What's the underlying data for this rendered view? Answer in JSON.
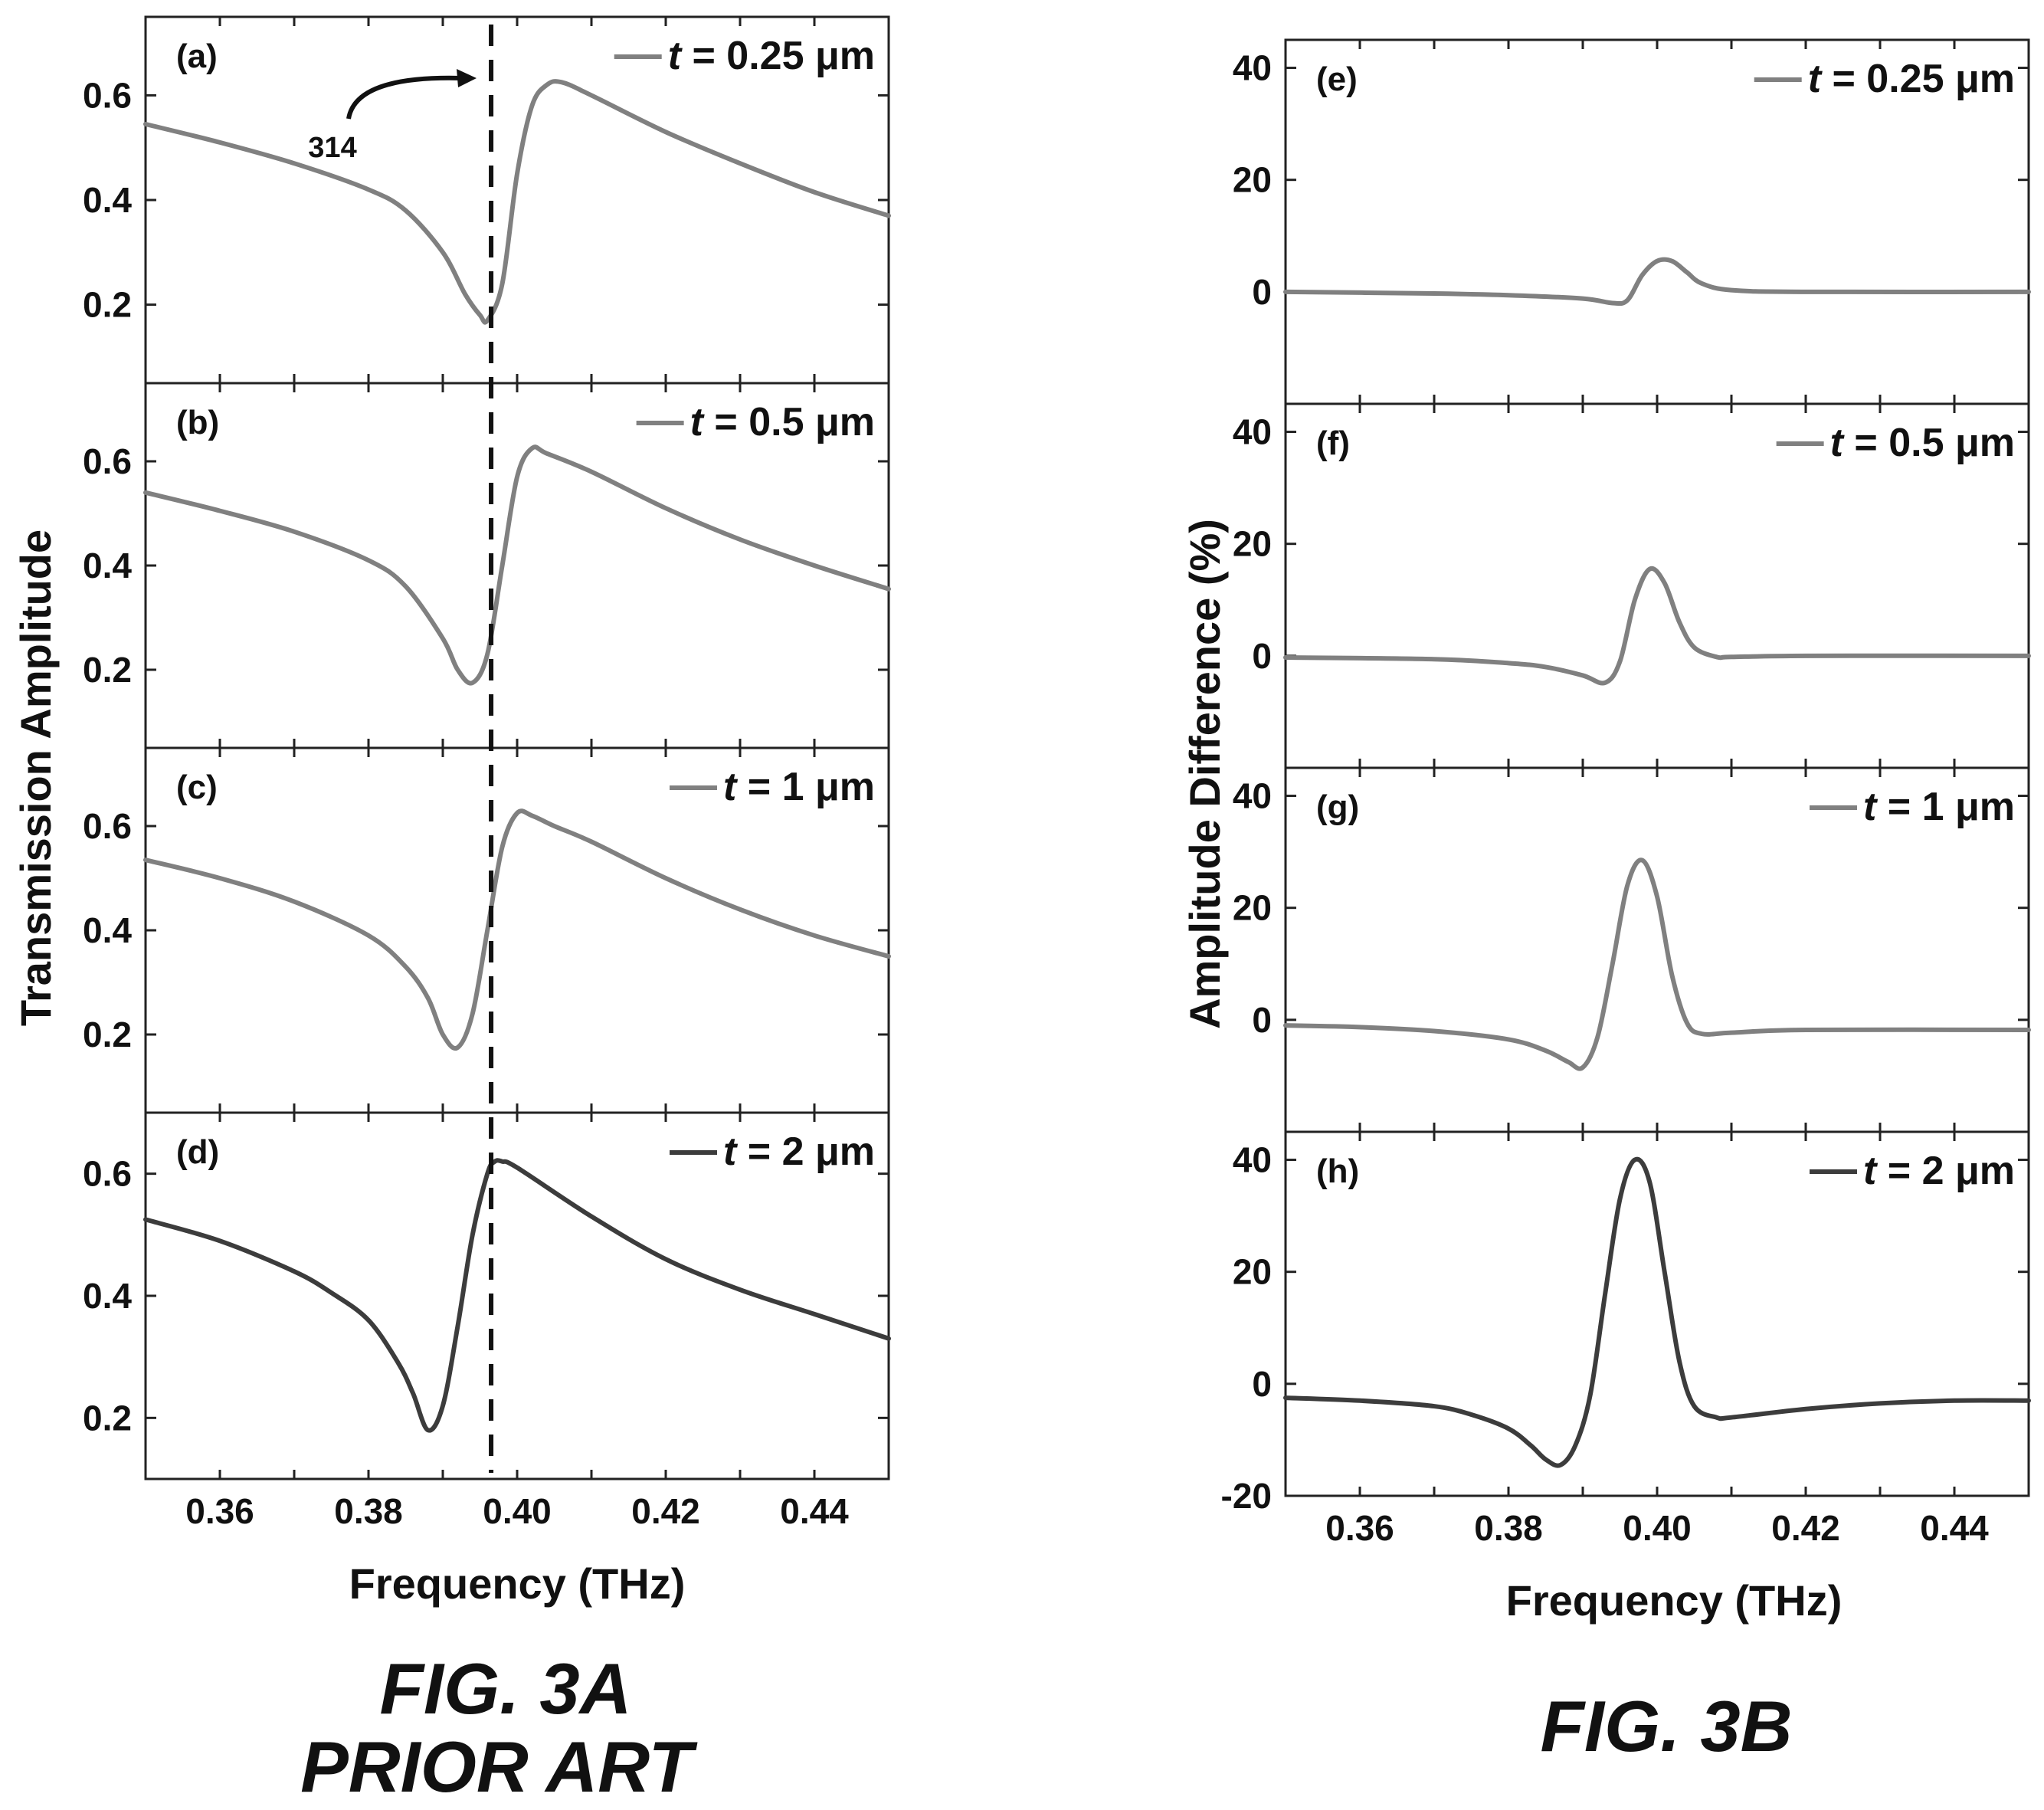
{
  "figure_a": {
    "caption_line1": "FIG. 3A",
    "caption_line2": "PRIOR ART",
    "ylabel": "Transmission Amplitude",
    "xlabel": "Frequency (THz)",
    "callout_label": "314"
  },
  "figure_b": {
    "caption": "FIG. 3B",
    "ylabel": "Amplitude Difference (%)",
    "xlabel": "Frequency (THz)"
  },
  "colors": {
    "curve_light": "#808080",
    "curve_dark": "#3c3c3c",
    "axis": "#222222",
    "reference_line": "#111111"
  },
  "chart_data": [
    {
      "type": "line",
      "panel": "(a)",
      "legend": "t = 0.25 μm",
      "legend_var": "t",
      "legend_rest": " = 0.25 μm",
      "xlim": [
        0.35,
        0.45
      ],
      "ylim": [
        0.05,
        0.75
      ],
      "yticks": [
        0.2,
        0.4,
        0.6
      ],
      "ytick_labels": [
        "0.2",
        "0.4",
        "0.6"
      ],
      "reference_line_x": 0.3965,
      "series": [
        {
          "x": [
            0.35,
            0.36,
            0.37,
            0.38,
            0.385,
            0.39,
            0.393,
            0.395,
            0.396,
            0.398,
            0.4,
            0.402,
            0.404,
            0.406,
            0.41,
            0.42,
            0.43,
            0.44,
            0.45
          ],
          "y": [
            0.545,
            0.51,
            0.47,
            0.42,
            0.38,
            0.3,
            0.22,
            0.18,
            0.17,
            0.24,
            0.45,
            0.58,
            0.62,
            0.625,
            0.6,
            0.53,
            0.47,
            0.415,
            0.37
          ]
        }
      ]
    },
    {
      "type": "line",
      "panel": "(b)",
      "legend": "t = 0.5 μm",
      "legend_var": "t",
      "legend_rest": " = 0.5 μm",
      "xlim": [
        0.35,
        0.45
      ],
      "ylim": [
        0.05,
        0.75
      ],
      "yticks": [
        0.2,
        0.4,
        0.6
      ],
      "ytick_labels": [
        "0.2",
        "0.4",
        "0.6"
      ],
      "reference_line_x": 0.3965,
      "series": [
        {
          "x": [
            0.35,
            0.36,
            0.37,
            0.38,
            0.385,
            0.39,
            0.392,
            0.394,
            0.396,
            0.398,
            0.4,
            0.402,
            0.404,
            0.41,
            0.42,
            0.43,
            0.44,
            0.45
          ],
          "y": [
            0.54,
            0.505,
            0.465,
            0.41,
            0.36,
            0.26,
            0.2,
            0.175,
            0.23,
            0.4,
            0.57,
            0.625,
            0.615,
            0.58,
            0.51,
            0.45,
            0.4,
            0.355
          ]
        }
      ]
    },
    {
      "type": "line",
      "panel": "(c)",
      "legend": "t = 1 μm",
      "legend_var": "t",
      "legend_rest": " = 1 μm",
      "xlim": [
        0.35,
        0.45
      ],
      "ylim": [
        0.05,
        0.75
      ],
      "yticks": [
        0.2,
        0.4,
        0.6
      ],
      "ytick_labels": [
        "0.2",
        "0.4",
        "0.6"
      ],
      "reference_line_x": 0.3965,
      "series": [
        {
          "x": [
            0.35,
            0.36,
            0.37,
            0.38,
            0.385,
            0.388,
            0.39,
            0.392,
            0.394,
            0.396,
            0.398,
            0.4,
            0.402,
            0.405,
            0.41,
            0.42,
            0.43,
            0.44,
            0.45
          ],
          "y": [
            0.535,
            0.5,
            0.455,
            0.39,
            0.33,
            0.27,
            0.2,
            0.175,
            0.24,
            0.4,
            0.56,
            0.625,
            0.62,
            0.6,
            0.57,
            0.5,
            0.44,
            0.39,
            0.35
          ]
        }
      ]
    },
    {
      "type": "line",
      "panel": "(d)",
      "legend": "t = 2 μm",
      "legend_var": "t",
      "legend_rest": " = 2 μm",
      "xlim": [
        0.35,
        0.45
      ],
      "ylim": [
        0.1,
        0.7
      ],
      "yticks": [
        0.2,
        0.4,
        0.6
      ],
      "ytick_labels": [
        "0.2",
        "0.4",
        "0.6"
      ],
      "xticks": [
        0.36,
        0.38,
        0.4,
        0.42,
        0.44
      ],
      "xtick_labels": [
        "0.36",
        "0.38",
        "0.40",
        "0.42",
        "0.44"
      ],
      "reference_line_x": 0.3965,
      "series": [
        {
          "x": [
            0.35,
            0.36,
            0.37,
            0.375,
            0.38,
            0.384,
            0.386,
            0.388,
            0.39,
            0.392,
            0.394,
            0.396,
            0.397,
            0.398,
            0.4,
            0.41,
            0.42,
            0.43,
            0.44,
            0.45
          ],
          "y": [
            0.525,
            0.49,
            0.44,
            0.405,
            0.36,
            0.29,
            0.24,
            0.18,
            0.22,
            0.35,
            0.5,
            0.6,
            0.62,
            0.62,
            0.61,
            0.53,
            0.46,
            0.41,
            0.37,
            0.33
          ]
        }
      ]
    },
    {
      "type": "line",
      "panel": "(e)",
      "legend": "t = 0.25 μm",
      "legend_var": "t",
      "legend_rest": " = 0.25 μm",
      "xlim": [
        0.35,
        0.45
      ],
      "ylim": [
        -20,
        45
      ],
      "yticks": [
        0,
        20,
        40
      ],
      "ytick_labels": [
        "0",
        "20",
        "40"
      ],
      "series": [
        {
          "x": [
            0.35,
            0.37,
            0.38,
            0.39,
            0.394,
            0.396,
            0.398,
            0.4,
            0.402,
            0.404,
            0.406,
            0.41,
            0.42,
            0.45
          ],
          "y": [
            0,
            -0.3,
            -0.6,
            -1.2,
            -2,
            -1.5,
            3,
            5.5,
            5.5,
            3.5,
            1.5,
            0.3,
            0,
            0
          ]
        }
      ]
    },
    {
      "type": "line",
      "panel": "(f)",
      "legend": "t = 0.5 μm",
      "legend_var": "t",
      "legend_rest": " = 0.5 μm",
      "xlim": [
        0.35,
        0.45
      ],
      "ylim": [
        -20,
        45
      ],
      "yticks": [
        0,
        20,
        40
      ],
      "ytick_labels": [
        "0",
        "20",
        "40"
      ],
      "series": [
        {
          "x": [
            0.35,
            0.37,
            0.38,
            0.385,
            0.39,
            0.393,
            0.395,
            0.397,
            0.399,
            0.401,
            0.403,
            0.405,
            0.408,
            0.41,
            0.42,
            0.45
          ],
          "y": [
            -0.3,
            -0.6,
            -1.3,
            -2,
            -3.5,
            -4.8,
            -1,
            10,
            15.5,
            13,
            6,
            1.5,
            -0.2,
            -0.2,
            0,
            0
          ]
        }
      ]
    },
    {
      "type": "line",
      "panel": "(g)",
      "legend": "t = 1 μm",
      "legend_var": "t",
      "legend_rest": " = 1 μm",
      "xlim": [
        0.35,
        0.45
      ],
      "ylim": [
        -20,
        45
      ],
      "yticks": [
        0,
        20,
        40
      ],
      "ytick_labels": [
        "0",
        "20",
        "40"
      ],
      "series": [
        {
          "x": [
            0.35,
            0.36,
            0.37,
            0.38,
            0.385,
            0.388,
            0.39,
            0.392,
            0.394,
            0.396,
            0.398,
            0.4,
            0.402,
            0.404,
            0.406,
            0.41,
            0.42,
            0.45
          ],
          "y": [
            -1,
            -1.3,
            -2,
            -3.5,
            -5.5,
            -7.5,
            -8.5,
            -3,
            10,
            24,
            28.5,
            22,
            8,
            -0.5,
            -2.5,
            -2.3,
            -1.8,
            -1.8
          ]
        }
      ]
    },
    {
      "type": "line",
      "panel": "(h)",
      "legend": "t = 2 μm",
      "legend_var": "t",
      "legend_rest": " = 2 μm",
      "xlim": [
        0.35,
        0.45
      ],
      "ylim": [
        -20,
        45
      ],
      "yticks": [
        -20,
        0,
        20,
        40
      ],
      "ytick_labels": [
        "-20",
        "0",
        "20",
        "40"
      ],
      "xticks": [
        0.36,
        0.38,
        0.4,
        0.42,
        0.44
      ],
      "xtick_labels": [
        "0.36",
        "0.38",
        "0.40",
        "0.42",
        "0.44"
      ],
      "series": [
        {
          "x": [
            0.35,
            0.36,
            0.37,
            0.375,
            0.38,
            0.383,
            0.385,
            0.387,
            0.389,
            0.391,
            0.393,
            0.395,
            0.397,
            0.399,
            0.401,
            0.403,
            0.405,
            0.408,
            0.41,
            0.42,
            0.43,
            0.44,
            0.45
          ],
          "y": [
            -2.5,
            -3,
            -4,
            -5.5,
            -8,
            -11,
            -13.5,
            -14.5,
            -11,
            -2,
            16,
            33,
            40,
            36,
            20,
            4,
            -4,
            -6,
            -6,
            -4.5,
            -3.5,
            -3,
            -3
          ]
        }
      ]
    }
  ]
}
